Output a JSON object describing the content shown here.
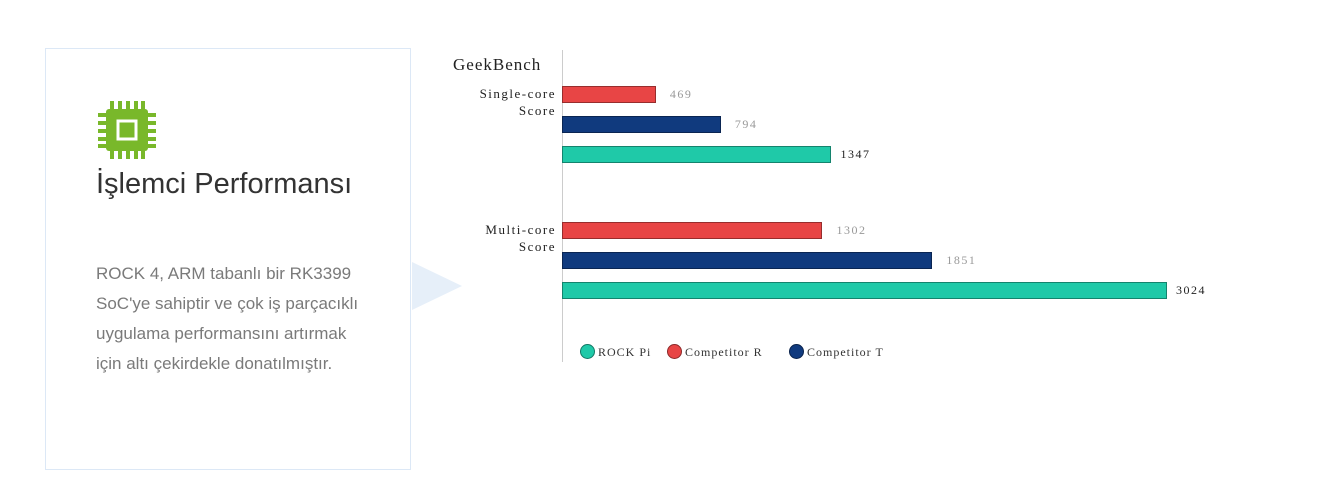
{
  "card": {
    "title": "İşlemci Performansı",
    "description": "ROCK 4, ARM tabanlı bir RK3399 SoC'ye sahiptir ve çok iş parçacıklı uygulama performansını artırmak için altı çekirdekle donatılmıştır."
  },
  "chart_data": {
    "type": "bar",
    "orientation": "horizontal",
    "title": "GeekBench",
    "categories": [
      "Single-core Score",
      "Multi-core Score"
    ],
    "series": [
      {
        "name": "ROCK Pi",
        "color": "#1fc9a8",
        "values": [
          1347,
          3024
        ]
      },
      {
        "name": "Competitor R",
        "color": "#e84545",
        "values": [
          469,
          1302
        ]
      },
      {
        "name": "Competitor T",
        "color": "#103a7e",
        "values": [
          794,
          1851
        ]
      }
    ]
  }
}
